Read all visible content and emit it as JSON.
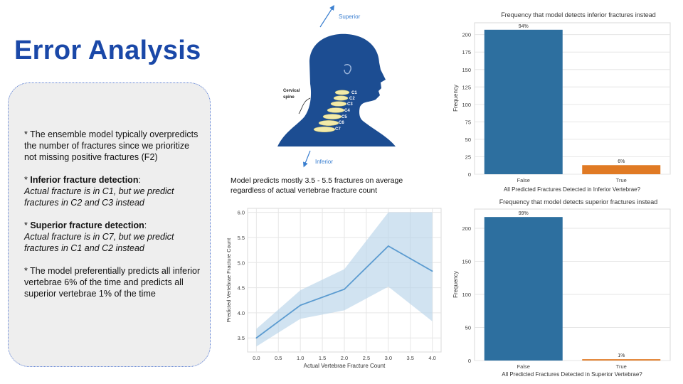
{
  "slide": {
    "title": "Error Analysis",
    "bullets": [
      {
        "prefix": "* ",
        "text": "The ensemble model typically overpredicts the number of fractures since we prioritize not missing positive fractures (F2)"
      },
      {
        "prefix": "* ",
        "bold": "Inferior fracture detection",
        "after": ":",
        "italic": "Actual fracture is in C1, but we predict fractures in C2 and C3 instead"
      },
      {
        "prefix": "* ",
        "bold": "Superior fracture detection",
        "after": ":",
        "italic": "Actual fracture is in C7, but we predict fractures in C1 and C2 instead"
      },
      {
        "prefix": "* ",
        "text": "The model preferentially predicts all inferior vertebrae 6% of the time and predicts all superior vertebrae 1% of the time"
      }
    ],
    "caption": "Model predicts mostly 3.5 - 5.5 fractures on average regardless of actual vertebrae fracture count"
  },
  "diagram": {
    "superior_label": "Superior",
    "inferior_label": "Inferior",
    "cervical_label_1": "Cervical",
    "cervical_label_2": "spine",
    "vertebrae": [
      "C1",
      "C2",
      "C3",
      "C4",
      "C5",
      "C6",
      "C7"
    ]
  },
  "colors": {
    "title": "#1a48a8",
    "bar_false": "#2d6f9f",
    "bar_true": "#e07a24",
    "line": "#5b9bd0",
    "band": "#b8d4ea",
    "head": "#1c4d92"
  },
  "chart_data": [
    {
      "type": "bar",
      "title": "Frequency that model detects inferior fractures instead",
      "xlabel": "All Predicted Fractures Detected in Inferior Vertebrae?",
      "ylabel": "Frequency",
      "categories": [
        "False",
        "True"
      ],
      "values": [
        207,
        13
      ],
      "labels": [
        "94%",
        "6%"
      ],
      "yticks": [
        0,
        25,
        50,
        75,
        100,
        125,
        150,
        175,
        200
      ],
      "ylim": [
        0,
        217
      ]
    },
    {
      "type": "line",
      "title": "",
      "xlabel": "Actual Vertebrae Fracture Count",
      "ylabel": "Predicted Vertebrae Fracture Count",
      "x": [
        0,
        1,
        2,
        3,
        4
      ],
      "y": [
        3.5,
        4.15,
        4.47,
        5.33,
        4.83
      ],
      "band_low": [
        3.33,
        3.88,
        4.05,
        4.52,
        3.83
      ],
      "band_high": [
        3.68,
        4.45,
        4.87,
        6.0,
        6.0
      ],
      "xticks": [
        0.0,
        0.5,
        1.0,
        1.5,
        2.0,
        2.5,
        3.0,
        3.5,
        4.0
      ],
      "yticks": [
        3.5,
        4.0,
        4.5,
        5.0,
        5.5,
        6.0
      ],
      "xlim": [
        -0.2,
        4.2
      ],
      "ylim": [
        3.22,
        6.08
      ]
    },
    {
      "type": "bar",
      "title": "Frequency that model detects superior fractures instead",
      "xlabel": "All Predicted Fractures Detected in Superior Vertebrae?",
      "ylabel": "Frequency",
      "categories": [
        "False",
        "True"
      ],
      "values": [
        217,
        2
      ],
      "labels": [
        "99%",
        "1%"
      ],
      "yticks": [
        0,
        50,
        100,
        150,
        200
      ],
      "ylim": [
        0,
        229
      ]
    }
  ]
}
